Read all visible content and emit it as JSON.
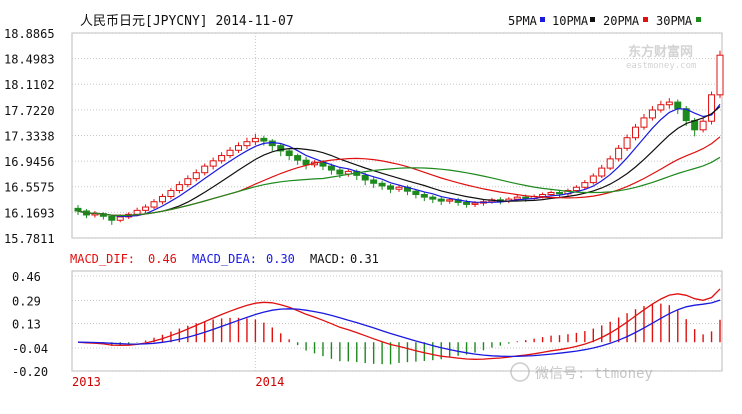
{
  "header": {
    "title": "人民币日元[JPYCNY] 2014-11-07",
    "ma_legend": [
      {
        "label": "5PMA",
        "color": "#1a1adf"
      },
      {
        "label": "10PMA",
        "color": "#111111"
      },
      {
        "label": "20PMA",
        "color": "#e01010"
      },
      {
        "label": "30PMA",
        "color": "#1e8a1e"
      }
    ]
  },
  "watermark": {
    "logo_text": "东方财富网",
    "logo_sub": "eastmoney.com",
    "wechat": "微信号: ttmoney"
  },
  "colors": {
    "up": "#e01010",
    "down": "#1e8a1e",
    "dif": "#e01010",
    "dea": "#1a1adf",
    "grid": "#c8c8c8",
    "axis": "#d00000"
  },
  "chart_data": [
    {
      "type": "candlestick",
      "title": "人民币日元[JPYCNY] 2014-11-07",
      "y_ticks": [
        15.7811,
        16.1693,
        16.5575,
        16.9456,
        17.3338,
        17.722,
        18.1102,
        18.4983,
        18.8865
      ],
      "ylim": [
        15.7811,
        18.8865
      ],
      "x_tick_labels": [
        "2013",
        "2014"
      ],
      "x_tick_positions": [
        0,
        21
      ],
      "grid": true,
      "series": [
        {
          "name": "5PMA"
        },
        {
          "name": "10PMA"
        },
        {
          "name": "20PMA"
        },
        {
          "name": "30PMA"
        }
      ],
      "candles": [
        [
          16.23,
          16.19,
          16.28,
          16.13
        ],
        [
          16.19,
          16.13,
          16.22,
          16.08
        ],
        [
          16.13,
          16.15,
          16.19,
          16.09
        ],
        [
          16.15,
          16.11,
          16.17,
          16.06
        ],
        [
          16.11,
          16.05,
          16.13,
          15.98
        ],
        [
          16.05,
          16.1,
          16.14,
          16.02
        ],
        [
          16.1,
          16.14,
          16.17,
          16.07
        ],
        [
          16.14,
          16.2,
          16.24,
          16.11
        ],
        [
          16.2,
          16.25,
          16.29,
          16.16
        ],
        [
          16.25,
          16.33,
          16.37,
          16.22
        ],
        [
          16.33,
          16.41,
          16.45,
          16.29
        ],
        [
          16.41,
          16.5,
          16.54,
          16.37
        ],
        [
          16.5,
          16.59,
          16.64,
          16.46
        ],
        [
          16.59,
          16.68,
          16.73,
          16.55
        ],
        [
          16.68,
          16.77,
          16.82,
          16.64
        ],
        [
          16.77,
          16.87,
          16.91,
          16.73
        ],
        [
          16.87,
          16.95,
          17,
          16.82
        ],
        [
          16.95,
          17.03,
          17.08,
          16.91
        ],
        [
          17.03,
          17.11,
          17.16,
          16.99
        ],
        [
          17.11,
          17.18,
          17.23,
          17.07
        ],
        [
          17.18,
          17.24,
          17.3,
          17.13
        ],
        [
          17.24,
          17.29,
          17.36,
          17.19
        ],
        [
          17.29,
          17.25,
          17.33,
          17.18
        ],
        [
          17.25,
          17.18,
          17.28,
          17.1
        ],
        [
          17.18,
          17.1,
          17.22,
          17.02
        ],
        [
          17.1,
          17.03,
          17.14,
          16.96
        ],
        [
          17.03,
          16.96,
          17.06,
          16.89
        ],
        [
          16.96,
          16.89,
          17.01,
          16.82
        ],
        [
          16.89,
          16.93,
          16.96,
          16.85
        ],
        [
          16.93,
          16.87,
          16.96,
          16.81
        ],
        [
          16.87,
          16.81,
          16.91,
          16.74
        ],
        [
          16.81,
          16.75,
          16.85,
          16.69
        ],
        [
          16.75,
          16.79,
          16.82,
          16.71
        ],
        [
          16.79,
          16.73,
          16.82,
          16.66
        ],
        [
          16.73,
          16.66,
          16.77,
          16.58
        ],
        [
          16.66,
          16.61,
          16.7,
          16.54
        ],
        [
          16.61,
          16.57,
          16.65,
          16.51
        ],
        [
          16.57,
          16.52,
          16.6,
          16.46
        ],
        [
          16.52,
          16.55,
          16.58,
          16.48
        ],
        [
          16.55,
          16.49,
          16.58,
          16.43
        ],
        [
          16.49,
          16.44,
          16.52,
          16.38
        ],
        [
          16.44,
          16.4,
          16.47,
          16.34
        ],
        [
          16.4,
          16.37,
          16.43,
          16.31
        ],
        [
          16.37,
          16.34,
          16.4,
          16.28
        ],
        [
          16.34,
          16.36,
          16.39,
          16.3
        ],
        [
          16.36,
          16.32,
          16.39,
          16.27
        ],
        [
          16.32,
          16.29,
          16.36,
          16.24
        ],
        [
          16.29,
          16.31,
          16.34,
          16.25
        ],
        [
          16.31,
          16.33,
          16.36,
          16.27
        ],
        [
          16.33,
          16.36,
          16.39,
          16.3
        ],
        [
          16.36,
          16.34,
          16.4,
          16.29
        ],
        [
          16.34,
          16.37,
          16.4,
          16.31
        ],
        [
          16.37,
          16.4,
          16.43,
          16.34
        ],
        [
          16.4,
          16.38,
          16.44,
          16.33
        ],
        [
          16.38,
          16.41,
          16.44,
          16.35
        ],
        [
          16.41,
          16.44,
          16.47,
          16.38
        ],
        [
          16.44,
          16.47,
          16.5,
          16.41
        ],
        [
          16.47,
          16.45,
          16.51,
          16.4
        ],
        [
          16.45,
          16.5,
          16.53,
          16.42
        ],
        [
          16.5,
          16.55,
          16.58,
          16.47
        ],
        [
          16.55,
          16.62,
          16.66,
          16.52
        ],
        [
          16.62,
          16.72,
          16.76,
          16.59
        ],
        [
          16.72,
          16.84,
          16.89,
          16.69
        ],
        [
          16.84,
          16.98,
          17.03,
          16.81
        ],
        [
          16.98,
          17.14,
          17.19,
          16.94
        ],
        [
          17.14,
          17.3,
          17.35,
          17.1
        ],
        [
          17.3,
          17.46,
          17.51,
          17.26
        ],
        [
          17.46,
          17.6,
          17.66,
          17.42
        ],
        [
          17.6,
          17.72,
          17.78,
          17.56
        ],
        [
          17.72,
          17.8,
          17.86,
          17.68
        ],
        [
          17.8,
          17.84,
          17.9,
          17.74
        ],
        [
          17.84,
          17.74,
          17.88,
          17.66
        ],
        [
          17.74,
          17.56,
          17.78,
          17.48
        ],
        [
          17.56,
          17.42,
          17.6,
          17.32
        ],
        [
          17.42,
          17.55,
          17.6,
          17.38
        ],
        [
          17.55,
          17.95,
          18,
          17.5
        ],
        [
          17.95,
          18.55,
          18.62,
          17.9
        ]
      ]
    },
    {
      "type": "macd",
      "title": "MACD",
      "legend": [
        {
          "key": "DIF",
          "label": "MACD_DIF:",
          "value": "0.46"
        },
        {
          "key": "DEA",
          "label": "MACD_DEA:",
          "value": "0.30"
        },
        {
          "key": "MACD",
          "label": "MACD:",
          "value": "0.31"
        }
      ],
      "y_ticks": [
        -0.2,
        -0.04,
        0.13,
        0.29,
        0.46
      ],
      "ylim": [
        -0.2,
        0.46
      ],
      "x_tick_labels": [
        "2013",
        "2014"
      ],
      "x_tick_positions": [
        0,
        21
      ]
    }
  ]
}
